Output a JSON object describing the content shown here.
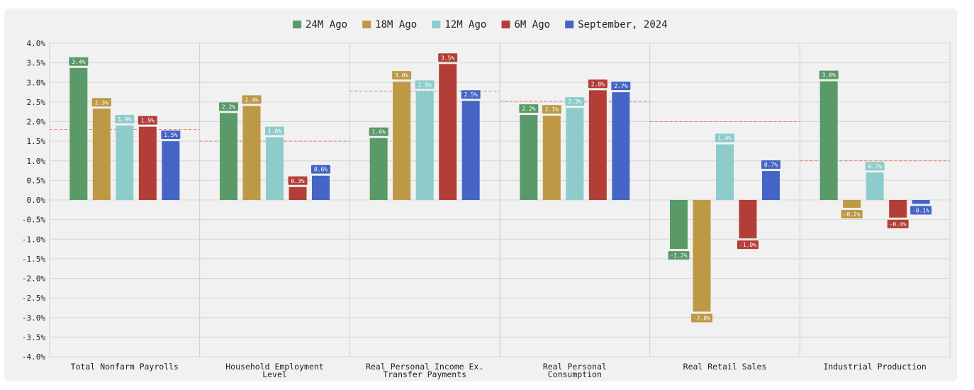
{
  "chart_data": {
    "type": "bar",
    "categories": [
      [
        "Total Nonfarm Payrolls"
      ],
      [
        "Household Employment",
        "Level"
      ],
      [
        "Real Personal Income Ex.",
        "Transfer Payments"
      ],
      [
        "Real Personal",
        "Consumption"
      ],
      [
        "Real Retail Sales"
      ],
      [
        "Industrial Production"
      ]
    ],
    "series": [
      {
        "name": "24M Ago",
        "color": "#5a9a68",
        "values": [
          3.37,
          2.22,
          1.58,
          2.17,
          -1.25,
          3.03
        ],
        "labels": [
          "3.4%",
          "2.2%",
          "1.6%",
          "2.2%",
          "-1.2%",
          "3.0%"
        ]
      },
      {
        "name": "18M Ago",
        "color": "#bd9845",
        "values": [
          2.33,
          2.4,
          3.02,
          2.15,
          -2.85,
          -0.2
        ],
        "labels": [
          "2.3%",
          "2.4%",
          "3.0%",
          "2.1%",
          "-2.8%",
          "-0.2%"
        ]
      },
      {
        "name": "12M Ago",
        "color": "#8ecccc",
        "values": [
          1.9,
          1.6,
          2.78,
          2.35,
          1.42,
          0.7
        ],
        "labels": [
          "1.9%",
          "1.6%",
          "2.8%",
          "2.3%",
          "1.4%",
          "0.7%"
        ]
      },
      {
        "name": "6M Ago",
        "color": "#b33e38",
        "values": [
          1.87,
          0.33,
          3.47,
          2.8,
          -0.98,
          -0.45
        ],
        "labels": [
          "1.9%",
          "0.3%",
          "3.5%",
          "2.8%",
          "-1.0%",
          "-0.4%"
        ]
      },
      {
        "name": "September, 2024",
        "color": "#4565c6",
        "values": [
          1.5,
          0.62,
          2.53,
          2.75,
          0.74,
          -0.1
        ],
        "labels": [
          "1.5%",
          "0.6%",
          "2.5%",
          "2.7%",
          "0.7%",
          "-0.1%"
        ]
      }
    ],
    "reference_lines": [
      1.8,
      1.5,
      2.78,
      2.52,
      2.0,
      1.0
    ],
    "reference_color": "#e08060",
    "ylim": [
      -4.0,
      4.0
    ],
    "yticks": [
      4.0,
      3.5,
      3.0,
      2.5,
      2.0,
      1.5,
      1.0,
      0.5,
      0.0,
      -0.5,
      -1.0,
      -1.5,
      -2.0,
      -2.5,
      -3.0,
      -3.5,
      -4.0
    ],
    "ytick_labels": [
      "4.0%",
      "3.5%",
      "3.0%",
      "2.5%",
      "2.0%",
      "1.5%",
      "1.0%",
      "0.5%",
      "0.0%",
      "-0.5%",
      "-1.0%",
      "-1.5%",
      "-2.0%",
      "-2.5%",
      "-3.0%",
      "-3.5%",
      "-4.0%"
    ],
    "legend_position": "top-center",
    "grid": true,
    "title": "",
    "xlabel": "",
    "ylabel": ""
  }
}
